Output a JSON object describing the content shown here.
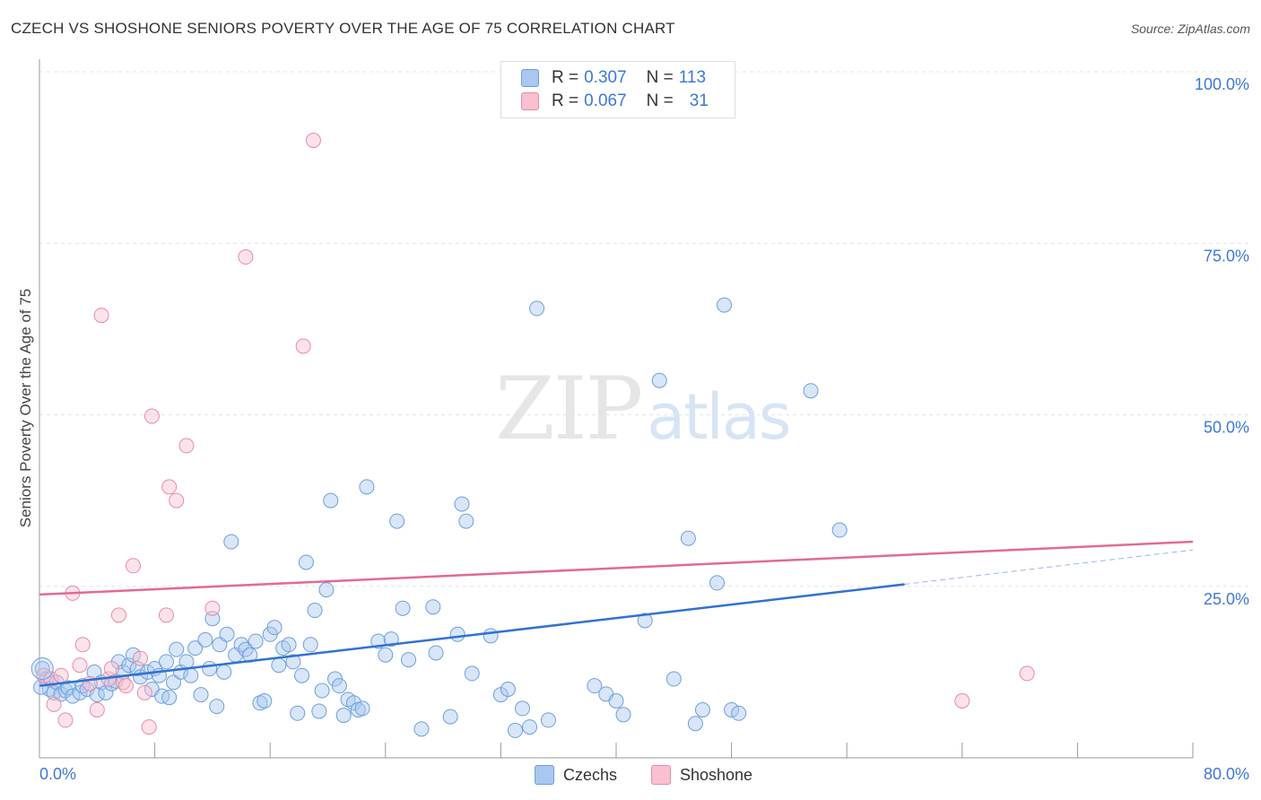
{
  "header": {
    "title": "CZECH VS SHOSHONE SENIORS POVERTY OVER THE AGE OF 75 CORRELATION CHART",
    "source": "Source: ZipAtlas.com"
  },
  "legend": {
    "rows": [
      {
        "r_label": "R =",
        "r_value": "0.307",
        "n_label": "N =",
        "n_value": "113"
      },
      {
        "r_label": "R =",
        "r_value": "0.067",
        "n_label": "N =",
        "n_value": "31"
      }
    ]
  },
  "bottom_legend": [
    "Czechs",
    "Shoshone"
  ],
  "watermark": {
    "zip": "ZIP",
    "atlas": "atlas"
  },
  "colors": {
    "czech_fill": "#a9c8f0",
    "czech_stroke": "#6d9fdc",
    "czech_line": "#2f72d2",
    "shoshone_fill": "#f8c0d0",
    "shoshone_stroke": "#e88aa6",
    "shoshone_line": "#e26a92",
    "tick_label": "#3b78d8",
    "grid": "#e4e4e4"
  },
  "chart_data": {
    "type": "scatter",
    "title": "CZECH VS SHOSHONE SENIORS POVERTY OVER THE AGE OF 75 CORRELATION CHART",
    "xlabel": "",
    "ylabel": "Seniors Poverty Over the Age of 75",
    "xlim": [
      0,
      80
    ],
    "ylim": [
      0,
      100
    ],
    "x_tick_labels": {
      "left": "0.0%",
      "right": "80.0%"
    },
    "x_minor_ticks": [
      8,
      16,
      24,
      32,
      40,
      48,
      56,
      64,
      72
    ],
    "y_ticks": [
      {
        "value": 25,
        "label": "25.0%"
      },
      {
        "value": 50,
        "label": "50.0%"
      },
      {
        "value": 75,
        "label": "75.0%"
      },
      {
        "value": 100,
        "label": "100.0%"
      }
    ],
    "series": [
      {
        "name": "Czechs",
        "r": 0.307,
        "n": 113,
        "trend": {
          "x0": 0,
          "y0": 10.5,
          "x1": 60,
          "y1": 25.3,
          "dash_x1": 80,
          "dash_y1": 30.3
        },
        "points": [
          [
            0.2,
            13.0
          ],
          [
            0.5,
            11.5
          ],
          [
            0.7,
            10.0
          ],
          [
            1.0,
            9.5
          ],
          [
            1.2,
            11.0
          ],
          [
            1.5,
            9.3
          ],
          [
            1.8,
            9.8
          ],
          [
            2.0,
            10.2
          ],
          [
            2.3,
            9.0
          ],
          [
            2.8,
            9.5
          ],
          [
            3.0,
            10.5
          ],
          [
            3.3,
            10.0
          ],
          [
            3.8,
            12.5
          ],
          [
            4.0,
            9.2
          ],
          [
            4.3,
            11.0
          ],
          [
            4.6,
            9.5
          ],
          [
            5.0,
            10.8
          ],
          [
            5.3,
            11.2
          ],
          [
            5.5,
            14.0
          ],
          [
            5.8,
            12.5
          ],
          [
            6.2,
            13.5
          ],
          [
            6.5,
            15.0
          ],
          [
            6.8,
            13.0
          ],
          [
            7.0,
            11.8
          ],
          [
            7.5,
            12.5
          ],
          [
            7.8,
            10.0
          ],
          [
            8.0,
            13.0
          ],
          [
            8.3,
            12.0
          ],
          [
            8.5,
            9.0
          ],
          [
            8.8,
            14.0
          ],
          [
            9.0,
            8.8
          ],
          [
            9.3,
            11.0
          ],
          [
            9.5,
            15.8
          ],
          [
            9.8,
            12.5
          ],
          [
            10.2,
            14.0
          ],
          [
            10.5,
            12.0
          ],
          [
            10.8,
            16.0
          ],
          [
            11.2,
            9.2
          ],
          [
            11.5,
            17.2
          ],
          [
            11.8,
            13.0
          ],
          [
            12.0,
            20.3
          ],
          [
            12.3,
            7.5
          ],
          [
            12.5,
            16.5
          ],
          [
            12.8,
            12.5
          ],
          [
            13.0,
            18.0
          ],
          [
            13.3,
            31.5
          ],
          [
            13.6,
            15.0
          ],
          [
            14.0,
            16.5
          ],
          [
            14.3,
            15.8
          ],
          [
            14.6,
            15.0
          ],
          [
            15.0,
            17.0
          ],
          [
            15.3,
            8.0
          ],
          [
            15.6,
            8.3
          ],
          [
            16.0,
            18.0
          ],
          [
            16.3,
            19.0
          ],
          [
            16.6,
            13.5
          ],
          [
            16.9,
            16.0
          ],
          [
            17.3,
            16.5
          ],
          [
            17.6,
            14.0
          ],
          [
            17.9,
            6.5
          ],
          [
            18.2,
            12.0
          ],
          [
            18.5,
            28.5
          ],
          [
            18.8,
            16.5
          ],
          [
            19.1,
            21.5
          ],
          [
            19.4,
            6.8
          ],
          [
            19.6,
            9.8
          ],
          [
            19.9,
            24.5
          ],
          [
            20.2,
            37.5
          ],
          [
            20.5,
            11.5
          ],
          [
            20.8,
            10.5
          ],
          [
            21.1,
            6.2
          ],
          [
            21.4,
            8.5
          ],
          [
            21.8,
            8.0
          ],
          [
            22.1,
            7.0
          ],
          [
            22.4,
            7.2
          ],
          [
            22.7,
            39.5
          ],
          [
            23.5,
            17.0
          ],
          [
            24.0,
            15.0
          ],
          [
            24.4,
            17.3
          ],
          [
            24.8,
            34.5
          ],
          [
            25.2,
            21.8
          ],
          [
            25.6,
            14.3
          ],
          [
            26.5,
            4.2
          ],
          [
            27.3,
            22.0
          ],
          [
            27.5,
            15.3
          ],
          [
            28.5,
            6.0
          ],
          [
            29.0,
            18.0
          ],
          [
            29.3,
            37.0
          ],
          [
            29.6,
            34.5
          ],
          [
            30.0,
            12.3
          ],
          [
            31.3,
            17.8
          ],
          [
            32.0,
            9.2
          ],
          [
            32.5,
            10.0
          ],
          [
            33.0,
            4.0
          ],
          [
            33.5,
            7.2
          ],
          [
            34.0,
            4.5
          ],
          [
            34.5,
            65.5
          ],
          [
            35.3,
            5.5
          ],
          [
            38.5,
            10.5
          ],
          [
            39.3,
            9.3
          ],
          [
            40.0,
            8.3
          ],
          [
            40.5,
            6.3
          ],
          [
            42.0,
            20.0
          ],
          [
            43.0,
            55.0
          ],
          [
            44.0,
            11.5
          ],
          [
            45.0,
            32.0
          ],
          [
            45.5,
            5.0
          ],
          [
            46.0,
            7.0
          ],
          [
            47.0,
            25.5
          ],
          [
            47.5,
            66.0
          ],
          [
            48.0,
            7.0
          ],
          [
            48.5,
            6.5
          ],
          [
            53.5,
            53.5
          ],
          [
            55.5,
            33.2
          ],
          [
            0.1,
            10.3
          ]
        ]
      },
      {
        "name": "Shoshone",
        "r": 0.067,
        "n": 31,
        "trend": {
          "x0": 0,
          "y0": 23.8,
          "x1": 80,
          "y1": 31.5
        },
        "points": [
          [
            0.3,
            12.0
          ],
          [
            0.8,
            11.5
          ],
          [
            1.0,
            7.8
          ],
          [
            1.5,
            12.0
          ],
          [
            1.8,
            5.5
          ],
          [
            2.3,
            24.0
          ],
          [
            2.8,
            13.5
          ],
          [
            3.0,
            16.5
          ],
          [
            3.5,
            10.8
          ],
          [
            4.0,
            7.0
          ],
          [
            4.3,
            64.5
          ],
          [
            4.8,
            11.5
          ],
          [
            5.0,
            13.0
          ],
          [
            5.5,
            20.8
          ],
          [
            5.8,
            11.0
          ],
          [
            6.0,
            10.5
          ],
          [
            6.5,
            28.0
          ],
          [
            7.0,
            14.5
          ],
          [
            7.3,
            9.5
          ],
          [
            7.6,
            4.5
          ],
          [
            7.8,
            49.8
          ],
          [
            8.8,
            20.8
          ],
          [
            9.0,
            39.5
          ],
          [
            9.5,
            37.5
          ],
          [
            10.2,
            45.5
          ],
          [
            12.0,
            21.8
          ],
          [
            14.3,
            73.0
          ],
          [
            18.3,
            60.0
          ],
          [
            19.0,
            90.0
          ],
          [
            64.0,
            8.3
          ],
          [
            68.5,
            12.3
          ]
        ]
      }
    ]
  }
}
